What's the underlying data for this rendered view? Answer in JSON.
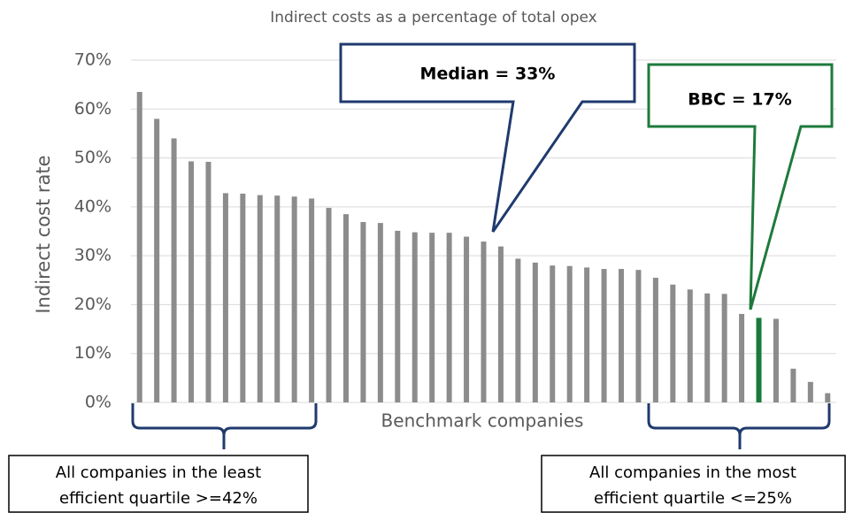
{
  "chart_data": {
    "type": "bar",
    "title": "Indirect costs as a percentage of total opex",
    "x_label": "Benchmark companies",
    "y_label": "Indirect cost rate",
    "values": [
      63.5,
      58,
      54,
      49.3,
      49.2,
      42.8,
      42.7,
      42.4,
      42.3,
      42.1,
      41.7,
      39.8,
      38.5,
      36.9,
      36.7,
      35.1,
      34.8,
      34.7,
      34.7,
      33.9,
      32.9,
      31.9,
      29.4,
      28.6,
      28.0,
      27.9,
      27.6,
      27.3,
      27.3,
      27.1,
      25.5,
      24.1,
      23.1,
      22.3,
      22.2,
      18.1,
      17.3,
      17.1,
      6.9,
      4.2,
      1.9
    ],
    "colors": [
      "#8c8c8c",
      "#8c8c8c",
      "#8c8c8c",
      "#8c8c8c",
      "#8c8c8c",
      "#8c8c8c",
      "#8c8c8c",
      "#8c8c8c",
      "#8c8c8c",
      "#8c8c8c",
      "#8c8c8c",
      "#8c8c8c",
      "#8c8c8c",
      "#8c8c8c",
      "#8c8c8c",
      "#8c8c8c",
      "#8c8c8c",
      "#8c8c8c",
      "#8c8c8c",
      "#8c8c8c",
      "#8c8c8c",
      "#8c8c8c",
      "#8c8c8c",
      "#8c8c8c",
      "#8c8c8c",
      "#8c8c8c",
      "#8c8c8c",
      "#8c8c8c",
      "#8c8c8c",
      "#8c8c8c",
      "#8c8c8c",
      "#8c8c8c",
      "#8c8c8c",
      "#8c8c8c",
      "#8c8c8c",
      "#8c8c8c",
      "#1a7a3a",
      "#8c8c8c",
      "#8c8c8c",
      "#8c8c8c",
      "#8c8c8c"
    ],
    "ylim": [
      0,
      70
    ],
    "yticks": [
      {
        "value": 0,
        "label": "0%"
      },
      {
        "value": 10,
        "label": "10%"
      },
      {
        "value": 20,
        "label": "20%"
      },
      {
        "value": 30,
        "label": "30%"
      },
      {
        "value": 40,
        "label": "40%"
      },
      {
        "value": 50,
        "label": "50%"
      },
      {
        "value": 60,
        "label": "60%"
      },
      {
        "value": 70,
        "label": "70%"
      }
    ],
    "grid": true,
    "annotations": [
      {
        "text": "Median = 33%",
        "color": "#1f3a6e"
      },
      {
        "text": "BBC = 17%",
        "color": "#1e7a3c"
      },
      {
        "lines": [
          "All companies in the least",
          "efficient quartile >=42%"
        ],
        "color": "#1f3a6e"
      },
      {
        "lines": [
          "All companies in the most",
          "efficient quartile <=25%"
        ],
        "color": "#1f3a6e"
      }
    ]
  }
}
